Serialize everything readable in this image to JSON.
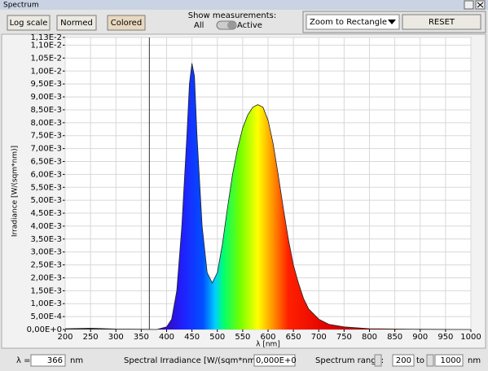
{
  "window": {
    "title": "Spectrum"
  },
  "toolbar": {
    "buttons": [
      "Log scale",
      "Normed",
      "Colored"
    ],
    "show_measurements": "Show measurements:",
    "all": "All",
    "active": "Active",
    "zoom": "Zoom to Rectangle",
    "reset": "RESET"
  },
  "chart_data": {
    "type": "area",
    "x_label": "λ [nm]",
    "y_label": "Irradiance [W/(sqm*nm)]",
    "x": [
      200,
      250,
      300,
      350,
      380,
      400,
      410,
      420,
      430,
      440,
      445,
      450,
      455,
      460,
      470,
      480,
      490,
      500,
      510,
      520,
      530,
      540,
      550,
      560,
      570,
      580,
      590,
      600,
      610,
      620,
      630,
      640,
      650,
      660,
      670,
      680,
      700,
      720,
      750,
      800,
      850,
      900,
      1000
    ],
    "values": [
      3e-05,
      5e-05,
      2e-05,
      1e-05,
      0,
      0.0001,
      0.0004,
      0.0015,
      0.004,
      0.0075,
      0.0095,
      0.0103,
      0.0098,
      0.0075,
      0.004,
      0.0022,
      0.0018,
      0.0022,
      0.0033,
      0.0047,
      0.006,
      0.007,
      0.0078,
      0.0083,
      0.0086,
      0.0087,
      0.0086,
      0.0081,
      0.0072,
      0.006,
      0.0047,
      0.0035,
      0.0025,
      0.0018,
      0.0012,
      0.0008,
      0.0004,
      0.0002,
      0.0001,
      3e-05,
      2e-05,
      1e-05,
      0
    ],
    "xlim": [
      200,
      1000
    ],
    "xticks": [
      200,
      250,
      300,
      350,
      400,
      450,
      500,
      550,
      600,
      650,
      700,
      750,
      800,
      850,
      900,
      950,
      1000
    ],
    "ylim": [
      0,
      0.0113
    ],
    "yticks": [
      {
        "value": 0,
        "label": "0,00E+0"
      },
      {
        "value": 0.0005,
        "label": "5,00E-4"
      },
      {
        "value": 0.001,
        "label": "1,00E-3"
      },
      {
        "value": 0.0015,
        "label": "1,50E-3"
      },
      {
        "value": 0.002,
        "label": "2,00E-3"
      },
      {
        "value": 0.0025,
        "label": "2,50E-3"
      },
      {
        "value": 0.003,
        "label": "3,00E-3"
      },
      {
        "value": 0.0035,
        "label": "3,50E-3"
      },
      {
        "value": 0.004,
        "label": "4,00E-3"
      },
      {
        "value": 0.0045,
        "label": "4,50E-3"
      },
      {
        "value": 0.005,
        "label": "5,00E-3"
      },
      {
        "value": 0.0055,
        "label": "5,50E-3"
      },
      {
        "value": 0.006,
        "label": "6,00E-3"
      },
      {
        "value": 0.0065,
        "label": "6,50E-3"
      },
      {
        "value": 0.007,
        "label": "7,00E-3"
      },
      {
        "value": 0.0075,
        "label": "7,50E-3"
      },
      {
        "value": 0.008,
        "label": "8,00E-3"
      },
      {
        "value": 0.0085,
        "label": "8,50E-3"
      },
      {
        "value": 0.009,
        "label": "9,00E-3"
      },
      {
        "value": 0.0095,
        "label": "9,50E-3"
      },
      {
        "value": 0.01,
        "label": "1,00E-2"
      },
      {
        "value": 0.0105,
        "label": "1,05E-2"
      },
      {
        "value": 0.011,
        "label": "1,10E-2"
      },
      {
        "value": 0.0113,
        "label": "1,13E-2"
      }
    ],
    "cursor": 366,
    "grid": true,
    "log_scale": false,
    "colored": true
  },
  "footer": {
    "lambda_label": "λ =",
    "lambda_unit": "nm",
    "irradiance_label": "Spectral Irradiance [W/(sqm*nm)]",
    "irradiance_value": "0,000E+0",
    "range_label": "Spectrum range:",
    "range_to": "to",
    "range_unit": "nm"
  }
}
